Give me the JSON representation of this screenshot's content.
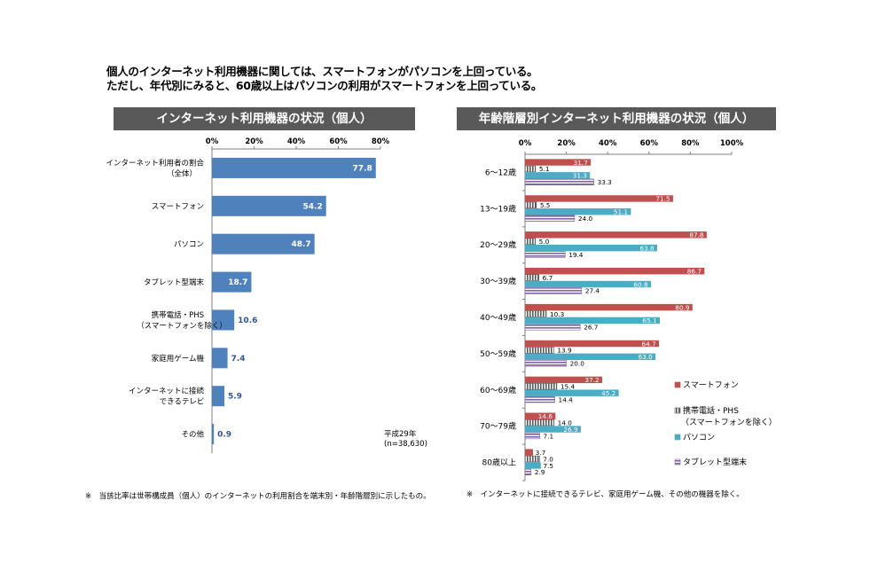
{
  "headline": {
    "line1": "個人のインターネット利用機器に関しては、スマートフォンがパソコンを上回っている。",
    "line2": "ただし、年代別にみると、60歳以上はパソコンの利用がスマートフォンを上回っている。"
  },
  "footnotes": {
    "left": "※　当該比率は世帯構成員（個人）のインターネットの利用割合を端末別・年齢階層別に示したもの。",
    "right": "※　インターネットに接続できるテレビ、家庭用ゲーム機、その他の機器を除く。"
  },
  "sample_note": {
    "line1": "平成29年",
    "line2": "(n=38,630)"
  },
  "colors": {
    "left_bar": "#4F81BD",
    "smartphone": "#C0504D",
    "mobile_phs": "#7F7F7F",
    "pc": "#4BACC6",
    "tablet": "#8064A2",
    "title_bg": "#595959"
  },
  "chart_data": [
    {
      "type": "bar",
      "orientation": "horizontal",
      "title": "インターネット利用機器の状況（個人）",
      "categories": [
        [
          "インターネット利用者の割合",
          "（全体）"
        ],
        [
          "スマートフォン"
        ],
        [
          "パソコン"
        ],
        [
          "タブレット型端末"
        ],
        [
          "携帯電話・PHS",
          "（スマートフォンを除く）"
        ],
        [
          "家庭用ゲーム機"
        ],
        [
          "インターネットに接続",
          "できるテレビ"
        ],
        [
          "その他"
        ]
      ],
      "values": [
        77.8,
        54.2,
        48.7,
        18.7,
        10.6,
        7.4,
        5.9,
        0.9
      ],
      "xlim": [
        0,
        80
      ],
      "ticks": [
        0,
        20,
        40,
        60,
        80
      ],
      "tick_labels": [
        "0%",
        "20%",
        "40%",
        "60%",
        "80%"
      ],
      "grid": false
    },
    {
      "type": "bar",
      "orientation": "horizontal",
      "title": "年齢階層別インターネット利用機器の状況（個人）",
      "categories": [
        "6～12歳",
        "13～19歳",
        "20～29歳",
        "30～39歳",
        "40～49歳",
        "50～59歳",
        "60～69歳",
        "70～79歳",
        "80歳以上"
      ],
      "series": [
        {
          "name": "スマートフォン",
          "values": [
            31.7,
            71.5,
            87.8,
            86.7,
            80.9,
            64.7,
            37.2,
            14.6,
            3.7
          ]
        },
        {
          "name": "携帯電話・PHS\n（スマートフォンを除く）",
          "values": [
            5.1,
            5.5,
            5.0,
            6.7,
            10.3,
            13.9,
            15.4,
            14.0,
            7.0
          ]
        },
        {
          "name": "パソコン",
          "values": [
            31.3,
            51.1,
            63.8,
            60.8,
            65.1,
            63.0,
            45.2,
            26.9,
            7.5
          ]
        },
        {
          "name": "タブレット型端末",
          "values": [
            33.3,
            24.0,
            19.4,
            27.4,
            26.7,
            20.0,
            14.4,
            7.1,
            2.9
          ]
        }
      ],
      "xlim": [
        0,
        100
      ],
      "ticks": [
        0,
        20,
        40,
        60,
        80,
        100
      ],
      "tick_labels": [
        "0%",
        "20%",
        "40%",
        "60%",
        "80%",
        "100%"
      ],
      "legend_position": "right",
      "grid": false
    }
  ]
}
